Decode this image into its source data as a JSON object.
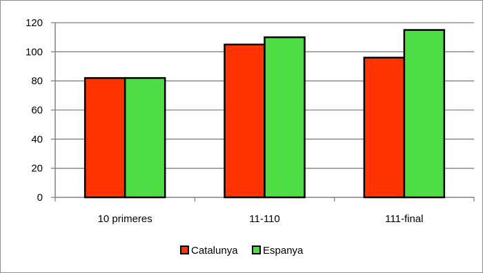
{
  "chart_data": {
    "type": "bar",
    "categories": [
      "10 primeres",
      "11-110",
      "111-final"
    ],
    "series": [
      {
        "name": "Catalunya",
        "color": "#ff3300",
        "values": [
          82,
          105,
          96
        ]
      },
      {
        "name": "Espanya",
        "color": "#4ddd44",
        "values": [
          82,
          110,
          115
        ]
      }
    ],
    "ylim": [
      0,
      120
    ],
    "yticks": [
      0,
      20,
      40,
      60,
      80,
      100,
      120
    ],
    "grid": true,
    "legend_position": "bottom"
  }
}
